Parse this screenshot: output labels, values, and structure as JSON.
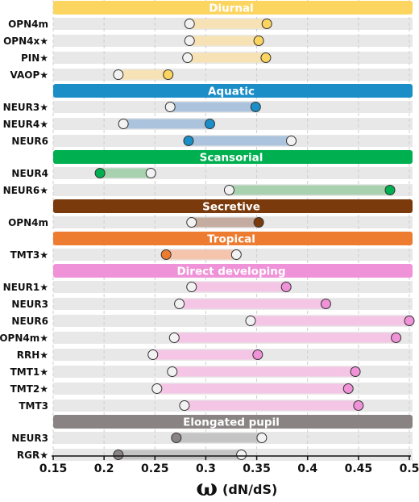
{
  "chart_data": {
    "type": "dumbbell",
    "xlabel": "ω",
    "xlabel_units": "(dN/dS)",
    "xlim": [
      0.15,
      0.5
    ],
    "xticks": [
      "0.15",
      "0.2",
      "0.25",
      "0.3",
      "0.35",
      "0.4",
      "0.45",
      "0.5"
    ],
    "xtick_values": [
      0.15,
      0.2,
      0.25,
      0.3,
      0.35,
      0.4,
      0.45,
      0.5
    ],
    "groups": [
      {
        "name": "Diurnal",
        "color": "#FCD560",
        "light": "#F7E2B5",
        "rows": [
          {
            "label": "OPN4m",
            "white": 0.284,
            "colored": 0.36
          },
          {
            "label": "OPN4x★",
            "white": 0.284,
            "colored": 0.352
          },
          {
            "label": "PIN★",
            "white": 0.282,
            "colored": 0.359
          },
          {
            "label": "VAOP★",
            "white": 0.214,
            "colored": 0.263
          }
        ]
      },
      {
        "name": "Aquatic",
        "color": "#1B8EC8",
        "light": "#ABC3DD",
        "rows": [
          {
            "label": "NEUR3★",
            "white": 0.265,
            "colored": 0.349
          },
          {
            "label": "NEUR4★",
            "white": 0.219,
            "colored": 0.304
          },
          {
            "label": "NEUR6",
            "white": 0.384,
            "colored": 0.283
          }
        ]
      },
      {
        "name": "Scansorial",
        "color": "#00B050",
        "light": "#A8D2AF",
        "rows": [
          {
            "label": "NEUR4",
            "white": 0.246,
            "colored": 0.196
          },
          {
            "label": "NEUR6★",
            "white": 0.323,
            "colored": 0.481
          }
        ]
      },
      {
        "name": "Secretive",
        "color": "#7B3A0C",
        "light": "#C4ACA0",
        "rows": [
          {
            "label": "OPN4m",
            "white": 0.286,
            "colored": 0.352
          }
        ]
      },
      {
        "name": "Tropical",
        "color": "#EE7C30",
        "light": "#F4C4AD",
        "rows": [
          {
            "label": "TMT3★",
            "white": 0.33,
            "colored": 0.261
          }
        ]
      },
      {
        "name": "Direct developing",
        "color": "#EF92D8",
        "light": "#F5C5E5",
        "rows": [
          {
            "label": "NEUR1★",
            "white": 0.286,
            "colored": 0.379
          },
          {
            "label": "NEUR3",
            "white": 0.274,
            "colored": 0.418
          },
          {
            "label": "NEUR6",
            "white": 0.344,
            "colored": 0.5
          },
          {
            "label": "OPN4m★",
            "white": 0.269,
            "colored": 0.487
          },
          {
            "label": "RRH★",
            "white": 0.248,
            "colored": 0.351
          },
          {
            "label": "TMT1★",
            "white": 0.267,
            "colored": 0.447
          },
          {
            "label": "TMT2★",
            "white": 0.252,
            "colored": 0.44
          },
          {
            "label": "TMT3",
            "white": 0.279,
            "colored": 0.45
          }
        ]
      },
      {
        "name": "Elongated pupil",
        "color": "#8A8384",
        "light": "#C5C4C4",
        "rows": [
          {
            "label": "NEUR3",
            "white": 0.355,
            "colored": 0.271
          },
          {
            "label": "RGR★",
            "white": 0.335,
            "colored": 0.214
          }
        ]
      }
    ]
  }
}
